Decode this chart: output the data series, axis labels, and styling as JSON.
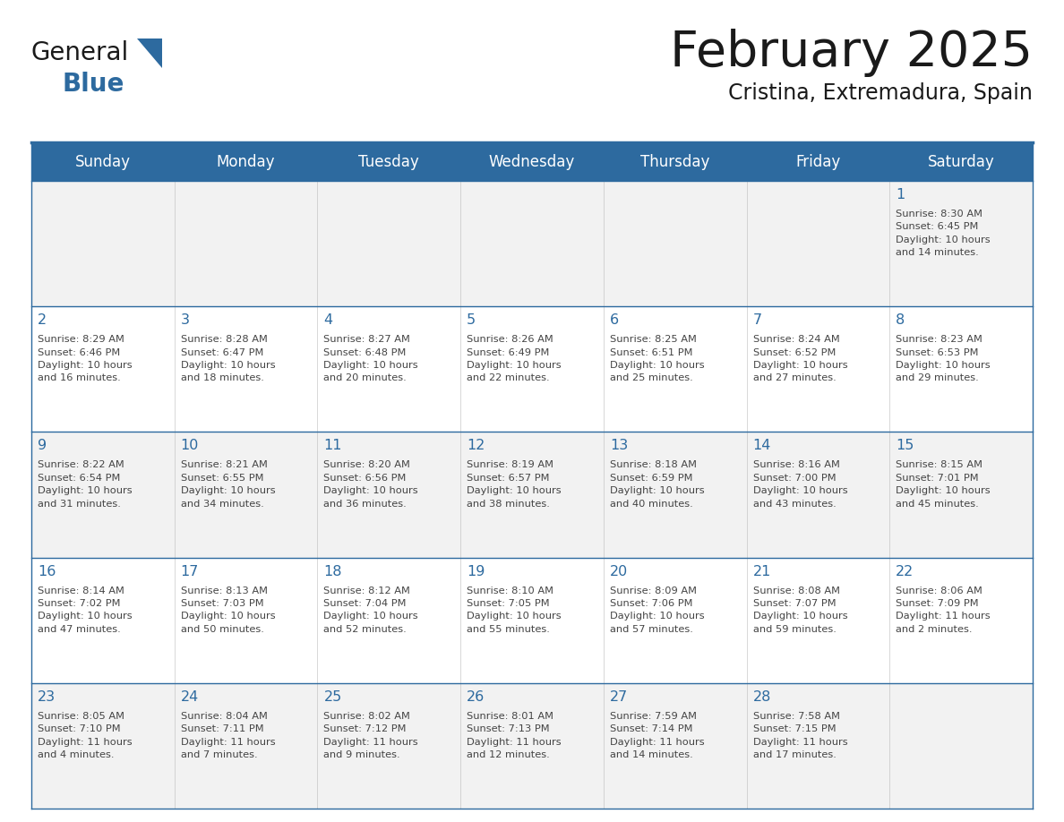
{
  "title": "February 2025",
  "subtitle": "Cristina, Extremadura, Spain",
  "header_bg": "#2D6A9F",
  "header_text": "#FFFFFF",
  "cell_bg_week1": "#F2F2F2",
  "cell_bg_week2": "#FFFFFF",
  "cell_bg_week3": "#F2F2F2",
  "cell_bg_week4": "#FFFFFF",
  "cell_bg_week5": "#F2F2F2",
  "day_number_color": "#2D6A9F",
  "text_color": "#444444",
  "line_color": "#2D6A9F",
  "border_color": "#2D6A9F",
  "days_of_week": [
    "Sunday",
    "Monday",
    "Tuesday",
    "Wednesday",
    "Thursday",
    "Friday",
    "Saturday"
  ],
  "weeks": [
    [
      {
        "day": "",
        "info": ""
      },
      {
        "day": "",
        "info": ""
      },
      {
        "day": "",
        "info": ""
      },
      {
        "day": "",
        "info": ""
      },
      {
        "day": "",
        "info": ""
      },
      {
        "day": "",
        "info": ""
      },
      {
        "day": "1",
        "info": "Sunrise: 8:30 AM\nSunset: 6:45 PM\nDaylight: 10 hours\nand 14 minutes."
      }
    ],
    [
      {
        "day": "2",
        "info": "Sunrise: 8:29 AM\nSunset: 6:46 PM\nDaylight: 10 hours\nand 16 minutes."
      },
      {
        "day": "3",
        "info": "Sunrise: 8:28 AM\nSunset: 6:47 PM\nDaylight: 10 hours\nand 18 minutes."
      },
      {
        "day": "4",
        "info": "Sunrise: 8:27 AM\nSunset: 6:48 PM\nDaylight: 10 hours\nand 20 minutes."
      },
      {
        "day": "5",
        "info": "Sunrise: 8:26 AM\nSunset: 6:49 PM\nDaylight: 10 hours\nand 22 minutes."
      },
      {
        "day": "6",
        "info": "Sunrise: 8:25 AM\nSunset: 6:51 PM\nDaylight: 10 hours\nand 25 minutes."
      },
      {
        "day": "7",
        "info": "Sunrise: 8:24 AM\nSunset: 6:52 PM\nDaylight: 10 hours\nand 27 minutes."
      },
      {
        "day": "8",
        "info": "Sunrise: 8:23 AM\nSunset: 6:53 PM\nDaylight: 10 hours\nand 29 minutes."
      }
    ],
    [
      {
        "day": "9",
        "info": "Sunrise: 8:22 AM\nSunset: 6:54 PM\nDaylight: 10 hours\nand 31 minutes."
      },
      {
        "day": "10",
        "info": "Sunrise: 8:21 AM\nSunset: 6:55 PM\nDaylight: 10 hours\nand 34 minutes."
      },
      {
        "day": "11",
        "info": "Sunrise: 8:20 AM\nSunset: 6:56 PM\nDaylight: 10 hours\nand 36 minutes."
      },
      {
        "day": "12",
        "info": "Sunrise: 8:19 AM\nSunset: 6:57 PM\nDaylight: 10 hours\nand 38 minutes."
      },
      {
        "day": "13",
        "info": "Sunrise: 8:18 AM\nSunset: 6:59 PM\nDaylight: 10 hours\nand 40 minutes."
      },
      {
        "day": "14",
        "info": "Sunrise: 8:16 AM\nSunset: 7:00 PM\nDaylight: 10 hours\nand 43 minutes."
      },
      {
        "day": "15",
        "info": "Sunrise: 8:15 AM\nSunset: 7:01 PM\nDaylight: 10 hours\nand 45 minutes."
      }
    ],
    [
      {
        "day": "16",
        "info": "Sunrise: 8:14 AM\nSunset: 7:02 PM\nDaylight: 10 hours\nand 47 minutes."
      },
      {
        "day": "17",
        "info": "Sunrise: 8:13 AM\nSunset: 7:03 PM\nDaylight: 10 hours\nand 50 minutes."
      },
      {
        "day": "18",
        "info": "Sunrise: 8:12 AM\nSunset: 7:04 PM\nDaylight: 10 hours\nand 52 minutes."
      },
      {
        "day": "19",
        "info": "Sunrise: 8:10 AM\nSunset: 7:05 PM\nDaylight: 10 hours\nand 55 minutes."
      },
      {
        "day": "20",
        "info": "Sunrise: 8:09 AM\nSunset: 7:06 PM\nDaylight: 10 hours\nand 57 minutes."
      },
      {
        "day": "21",
        "info": "Sunrise: 8:08 AM\nSunset: 7:07 PM\nDaylight: 10 hours\nand 59 minutes."
      },
      {
        "day": "22",
        "info": "Sunrise: 8:06 AM\nSunset: 7:09 PM\nDaylight: 11 hours\nand 2 minutes."
      }
    ],
    [
      {
        "day": "23",
        "info": "Sunrise: 8:05 AM\nSunset: 7:10 PM\nDaylight: 11 hours\nand 4 minutes."
      },
      {
        "day": "24",
        "info": "Sunrise: 8:04 AM\nSunset: 7:11 PM\nDaylight: 11 hours\nand 7 minutes."
      },
      {
        "day": "25",
        "info": "Sunrise: 8:02 AM\nSunset: 7:12 PM\nDaylight: 11 hours\nand 9 minutes."
      },
      {
        "day": "26",
        "info": "Sunrise: 8:01 AM\nSunset: 7:13 PM\nDaylight: 11 hours\nand 12 minutes."
      },
      {
        "day": "27",
        "info": "Sunrise: 7:59 AM\nSunset: 7:14 PM\nDaylight: 11 hours\nand 14 minutes."
      },
      {
        "day": "28",
        "info": "Sunrise: 7:58 AM\nSunset: 7:15 PM\nDaylight: 11 hours\nand 17 minutes."
      },
      {
        "day": "",
        "info": ""
      }
    ]
  ],
  "logo_text_general": "General",
  "logo_text_blue": "Blue",
  "logo_color_general": "#1a1a1a",
  "logo_color_blue": "#2D6A9F",
  "logo_triangle_color": "#2D6A9F",
  "figwidth": 11.88,
  "figheight": 9.18,
  "dpi": 100
}
